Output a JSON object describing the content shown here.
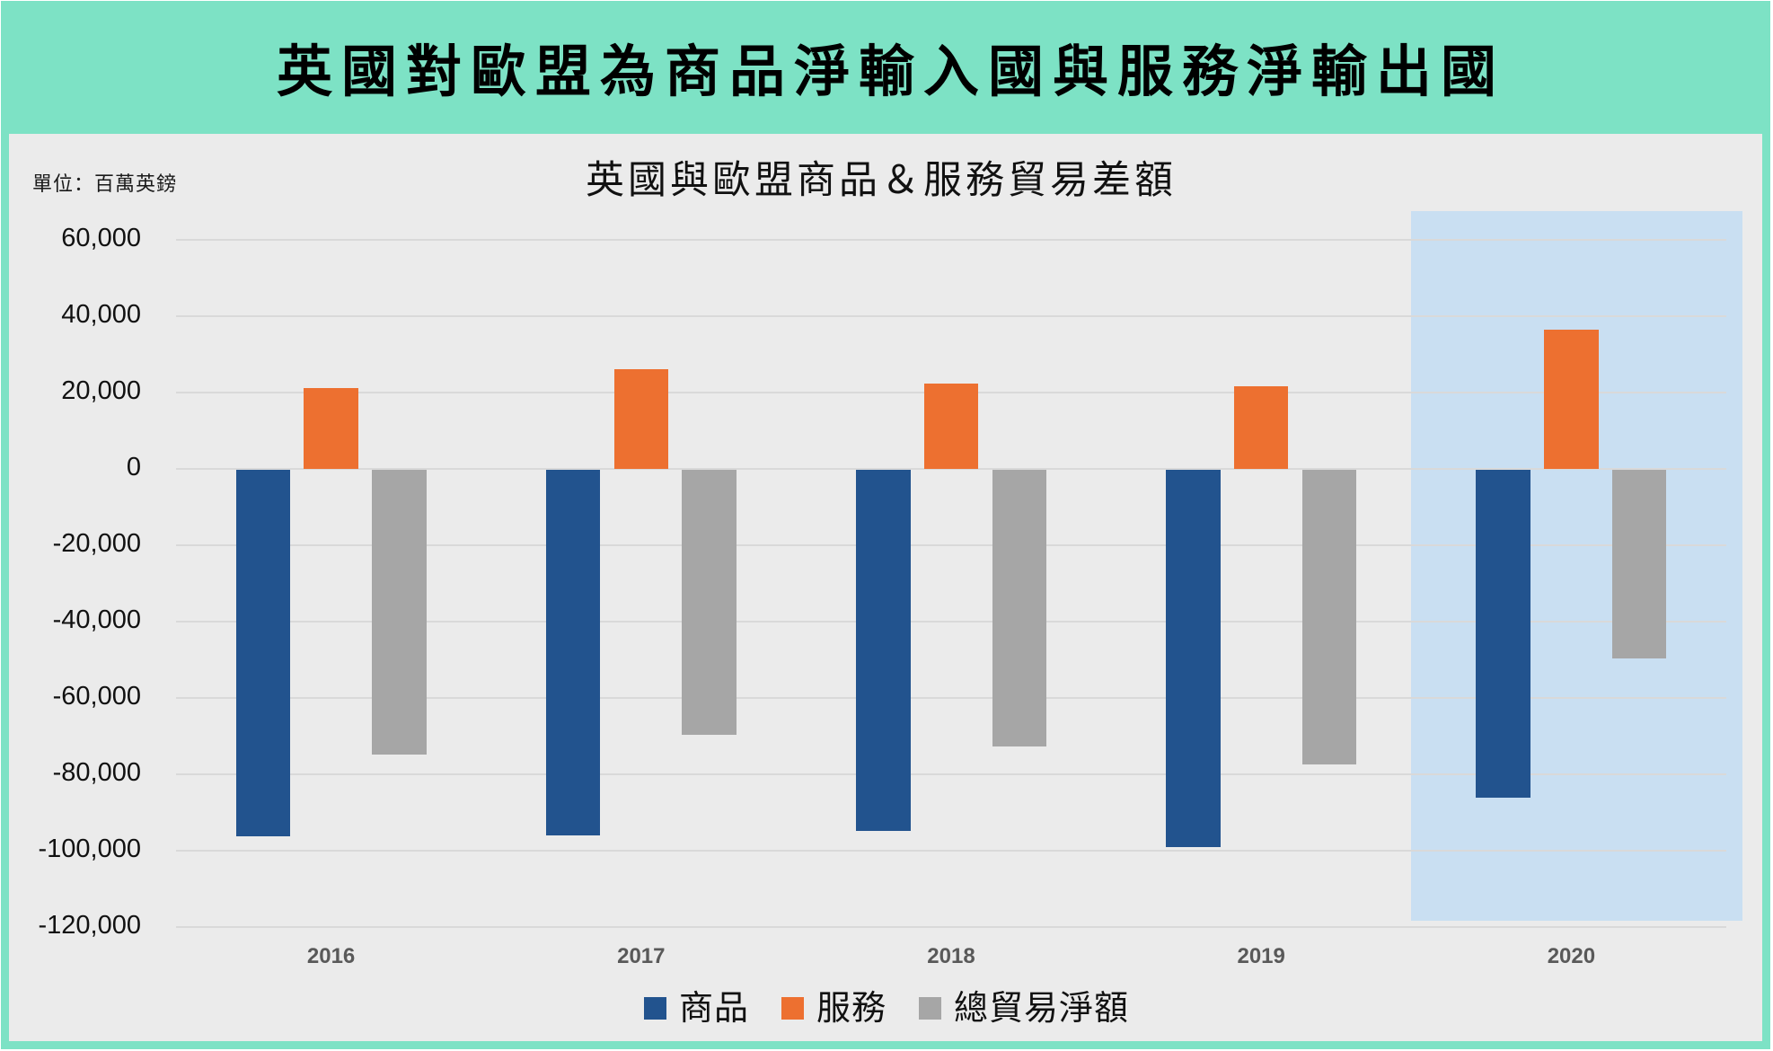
{
  "header": {
    "title": "英國對歐盟為商品淨輸入國與服務淨輸出國"
  },
  "chart_data": {
    "type": "bar",
    "title": "英國與歐盟商品＆服務貿易差額",
    "unit_label": "單位：百萬英鎊",
    "xlabel": "",
    "ylabel": "",
    "categories": [
      "2016",
      "2017",
      "2018",
      "2019",
      "2020"
    ],
    "series": [
      {
        "name": "商品",
        "color": "#22538e",
        "values": [
          -95900,
          -95800,
          -94700,
          -98800,
          -85800
        ]
      },
      {
        "name": "服務",
        "color": "#ed7030",
        "values": [
          21200,
          26200,
          22400,
          21700,
          36500
        ]
      },
      {
        "name": "總貿易淨額",
        "color": "#a6a6a6",
        "values": [
          -74700,
          -69400,
          -72400,
          -77100,
          -49300
        ]
      }
    ],
    "ylim": [
      -120000,
      60000
    ],
    "yticks": [
      60000,
      40000,
      20000,
      0,
      -20000,
      -40000,
      -60000,
      -80000,
      -100000,
      -120000
    ],
    "ytick_labels": [
      "60,000",
      "40,000",
      "20,000",
      "0",
      "-20,000",
      "-40,000",
      "-60,000",
      "-80,000",
      "-100,000",
      "-120,000"
    ],
    "grid": true,
    "legend_position": "bottom",
    "highlight": {
      "category": "2020",
      "color": "#c9dff2"
    }
  },
  "colors": {
    "frame": "#7de2c5",
    "panel": "#ebebeb",
    "gridline": "#d9d9d9",
    "axis_text": "#595959"
  }
}
